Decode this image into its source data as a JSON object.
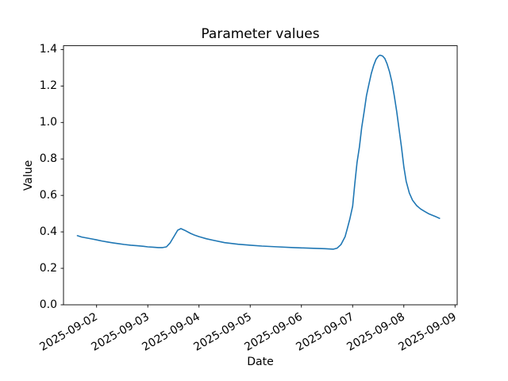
{
  "figure": {
    "background": "#ffffff",
    "text_color": "#000000"
  },
  "chart_data": {
    "type": "line",
    "title": "Parameter values",
    "xlabel": "Date",
    "ylabel": "Value",
    "grid": false,
    "legend": null,
    "line_color": "#1f77b4",
    "x_tick_rotation_deg": 30,
    "x_tick_labels": [
      "2025-09-02",
      "2025-09-03",
      "2025-09-04",
      "2025-09-05",
      "2025-09-06",
      "2025-09-07",
      "2025-09-08",
      "2025-09-09"
    ],
    "y_tick_labels": [
      "0.0",
      "0.2",
      "0.4",
      "0.6",
      "0.8",
      "1.0",
      "1.2",
      "1.4"
    ],
    "ylim": [
      0.0,
      1.421
    ],
    "xlim": [
      "2025-09-01 08:30",
      "2025-09-09 01:00"
    ],
    "series": [
      {
        "name": "Parameter",
        "points": [
          [
            "2025-09-01 15:00",
            0.379
          ],
          [
            "2025-09-01 17:00",
            0.372
          ],
          [
            "2025-09-01 19:30",
            0.366
          ],
          [
            "2025-09-01 22:00",
            0.361
          ],
          [
            "2025-09-02 00:00",
            0.356
          ],
          [
            "2025-09-02 02:30",
            0.35
          ],
          [
            "2025-09-02 05:00",
            0.345
          ],
          [
            "2025-09-02 07:30",
            0.34
          ],
          [
            "2025-09-02 10:30",
            0.335
          ],
          [
            "2025-09-02 13:00",
            0.331
          ],
          [
            "2025-09-02 16:00",
            0.327
          ],
          [
            "2025-09-02 19:00",
            0.324
          ],
          [
            "2025-09-02 22:00",
            0.321
          ],
          [
            "2025-09-03 00:00",
            0.318
          ],
          [
            "2025-09-03 02:30",
            0.316
          ],
          [
            "2025-09-03 05:00",
            0.314
          ],
          [
            "2025-09-03 07:00",
            0.314
          ],
          [
            "2025-09-03 08:45",
            0.318
          ],
          [
            "2025-09-03 10:30",
            0.34
          ],
          [
            "2025-09-03 12:30",
            0.379
          ],
          [
            "2025-09-03 14:00",
            0.409
          ],
          [
            "2025-09-03 15:30",
            0.418
          ],
          [
            "2025-09-03 17:15",
            0.409
          ],
          [
            "2025-09-03 20:00",
            0.392
          ],
          [
            "2025-09-03 22:00",
            0.382
          ],
          [
            "2025-09-04 00:00",
            0.374
          ],
          [
            "2025-09-04 03:30",
            0.362
          ],
          [
            "2025-09-04 07:00",
            0.353
          ],
          [
            "2025-09-04 12:00",
            0.341
          ],
          [
            "2025-09-04 18:15",
            0.332
          ],
          [
            "2025-09-05 00:00",
            0.327
          ],
          [
            "2025-09-05 05:30",
            0.322
          ],
          [
            "2025-09-05 13:00",
            0.318
          ],
          [
            "2025-09-05 20:15",
            0.314
          ],
          [
            "2025-09-06 00:00",
            0.312
          ],
          [
            "2025-09-06 05:30",
            0.31
          ],
          [
            "2025-09-06 11:00",
            0.308
          ],
          [
            "2025-09-06 15:00",
            0.305
          ],
          [
            "2025-09-06 16:45",
            0.311
          ],
          [
            "2025-09-06 18:30",
            0.33
          ],
          [
            "2025-09-06 20:30",
            0.374
          ],
          [
            "2025-09-06 21:30",
            0.417
          ],
          [
            "2025-09-06 22:40",
            0.47
          ],
          [
            "2025-09-07 00:00",
            0.541
          ],
          [
            "2025-09-07 01:00",
            0.66
          ],
          [
            "2025-09-07 02:05",
            0.78
          ],
          [
            "2025-09-07 03:10",
            0.865
          ],
          [
            "2025-09-07 04:15",
            0.973
          ],
          [
            "2025-09-07 05:25",
            1.06
          ],
          [
            "2025-09-07 06:30",
            1.147
          ],
          [
            "2025-09-07 07:40",
            1.212
          ],
          [
            "2025-09-07 08:45",
            1.269
          ],
          [
            "2025-09-07 09:50",
            1.312
          ],
          [
            "2025-09-07 11:00",
            1.347
          ],
          [
            "2025-09-07 12:05",
            1.364
          ],
          [
            "2025-09-07 12:50",
            1.369
          ],
          [
            "2025-09-07 14:00",
            1.365
          ],
          [
            "2025-09-07 15:05",
            1.351
          ],
          [
            "2025-09-07 16:10",
            1.321
          ],
          [
            "2025-09-07 17:20",
            1.277
          ],
          [
            "2025-09-07 18:25",
            1.221
          ],
          [
            "2025-09-07 19:30",
            1.147
          ],
          [
            "2025-09-07 20:40",
            1.06
          ],
          [
            "2025-09-07 21:45",
            0.965
          ],
          [
            "2025-09-07 22:55",
            0.865
          ],
          [
            "2025-09-08 00:00",
            0.756
          ],
          [
            "2025-09-08 01:05",
            0.678
          ],
          [
            "2025-09-08 02:35",
            0.613
          ],
          [
            "2025-09-08 04:05",
            0.574
          ],
          [
            "2025-09-08 06:00",
            0.544
          ],
          [
            "2025-09-08 07:50",
            0.526
          ],
          [
            "2025-09-08 09:40",
            0.513
          ],
          [
            "2025-09-08 11:30",
            0.5
          ],
          [
            "2025-09-08 13:25",
            0.491
          ],
          [
            "2025-09-08 15:15",
            0.482
          ],
          [
            "2025-09-08 16:45",
            0.474
          ]
        ]
      }
    ]
  }
}
